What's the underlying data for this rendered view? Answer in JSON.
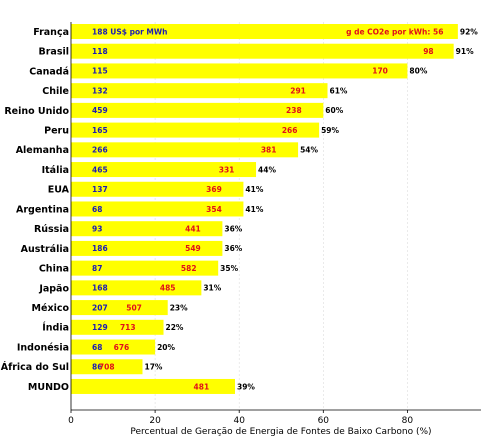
{
  "chart_data": {
    "type": "bar",
    "orientation": "horizontal",
    "xlabel": "Percentual de Geração de Energia de Fontes de Baixo Carbono (%)",
    "xlim": [
      0,
      97.5
    ],
    "xticks": [
      0,
      20,
      40,
      60,
      80
    ],
    "grid": "x-only, dashed",
    "bar_color": "#ffff00",
    "price_color": "#1c1cb4",
    "co2_color": "#e0101a",
    "price_header": "188 US$ por MWh",
    "co2_header": "g de CO2e por kWh: 56",
    "rows": [
      {
        "category": "França",
        "value": 92,
        "label": "92%",
        "price": "",
        "co2": "",
        "co2_x": 77
      },
      {
        "category": "Brasil",
        "value": 91,
        "label": "91%",
        "price": "118",
        "co2": "98",
        "co2_x": 85
      },
      {
        "category": "Canadá",
        "value": 80,
        "label": "80%",
        "price": "115",
        "co2": "170",
        "co2_x": 73.5
      },
      {
        "category": "Chile",
        "value": 61,
        "label": "61%",
        "price": "132",
        "co2": "291",
        "co2_x": 54
      },
      {
        "category": "Reino Unido",
        "value": 60,
        "label": "60%",
        "price": "459",
        "co2": "238",
        "co2_x": 53
      },
      {
        "category": "Peru",
        "value": 59,
        "label": "59%",
        "price": "165",
        "co2": "266",
        "co2_x": 52
      },
      {
        "category": "Alemanha",
        "value": 54,
        "label": "54%",
        "price": "266",
        "co2": "381",
        "co2_x": 47
      },
      {
        "category": "Itália",
        "value": 44,
        "label": "44%",
        "price": "465",
        "co2": "331",
        "co2_x": 37
      },
      {
        "category": "EUA",
        "value": 41,
        "label": "41%",
        "price": "137",
        "co2": "369",
        "co2_x": 34
      },
      {
        "category": "Argentina",
        "value": 41,
        "label": "41%",
        "price": "68",
        "co2": "354",
        "co2_x": 34
      },
      {
        "category": "Rússia",
        "value": 36,
        "label": "36%",
        "price": "93",
        "co2": "441",
        "co2_x": 29
      },
      {
        "category": "Austrália",
        "value": 36,
        "label": "36%",
        "price": "186",
        "co2": "549",
        "co2_x": 29
      },
      {
        "category": "China",
        "value": 35,
        "label": "35%",
        "price": "87",
        "co2": "582",
        "co2_x": 28
      },
      {
        "category": "Japão",
        "value": 31,
        "label": "31%",
        "price": "168",
        "co2": "485",
        "co2_x": 23
      },
      {
        "category": "México",
        "value": 23,
        "label": "23%",
        "price": "207",
        "co2": "507",
        "co2_x": 15
      },
      {
        "category": "Índia",
        "value": 22,
        "label": "22%",
        "price": "129",
        "co2": "713",
        "co2_x": 13.5
      },
      {
        "category": "Indonésia",
        "value": 20,
        "label": "20%",
        "price": "68",
        "co2": "676",
        "co2_x": 12
      },
      {
        "category": "África do Sul",
        "value": 17,
        "label": "17%",
        "price": "86",
        "co2": "708",
        "co2_x": 8.5
      },
      {
        "category": "MUNDO",
        "value": 39,
        "label": "39%",
        "price": "",
        "co2": "481",
        "co2_x": 31
      }
    ]
  }
}
